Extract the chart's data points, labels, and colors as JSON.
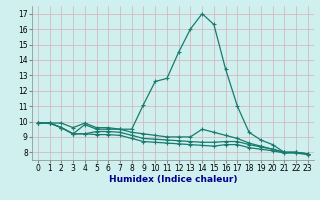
{
  "bg_color": "#cff0ee",
  "grid_color": "#d4b0b8",
  "line_color": "#1a7a6e",
  "xlabel": "Humidex (Indice chaleur)",
  "xlim": [
    -0.5,
    23.5
  ],
  "ylim": [
    7.5,
    17.5
  ],
  "yticks": [
    8,
    9,
    10,
    11,
    12,
    13,
    14,
    15,
    16,
    17
  ],
  "xticks": [
    0,
    1,
    2,
    3,
    4,
    5,
    6,
    7,
    8,
    9,
    10,
    11,
    12,
    13,
    14,
    15,
    16,
    17,
    18,
    19,
    20,
    21,
    22,
    23
  ],
  "series": [
    [
      9.9,
      9.9,
      9.9,
      9.6,
      9.9,
      9.6,
      9.6,
      9.5,
      9.5,
      11.1,
      12.6,
      12.8,
      14.5,
      16.0,
      17.0,
      16.3,
      13.4,
      11.0,
      9.3,
      8.8,
      8.5,
      8.0,
      8.0,
      7.9
    ],
    [
      9.9,
      9.9,
      9.6,
      9.2,
      9.8,
      9.5,
      9.5,
      9.5,
      9.3,
      9.2,
      9.1,
      9.0,
      9.0,
      9.0,
      9.5,
      9.3,
      9.1,
      8.9,
      8.6,
      8.4,
      8.2,
      8.0,
      8.0,
      7.9
    ],
    [
      9.9,
      9.9,
      9.6,
      9.2,
      9.2,
      9.35,
      9.35,
      9.3,
      9.1,
      8.9,
      8.85,
      8.8,
      8.75,
      8.7,
      8.65,
      8.65,
      8.7,
      8.7,
      8.5,
      8.35,
      8.2,
      8.0,
      8.0,
      7.9
    ],
    [
      9.9,
      9.9,
      9.6,
      9.2,
      9.2,
      9.15,
      9.15,
      9.1,
      8.9,
      8.7,
      8.65,
      8.6,
      8.55,
      8.5,
      8.45,
      8.4,
      8.5,
      8.5,
      8.3,
      8.2,
      8.1,
      7.95,
      7.95,
      7.85
    ]
  ],
  "xlabel_color": "#00008b",
  "xlabel_fontsize": 6.5,
  "tick_fontsize": 5.5,
  "line_width": 0.9,
  "marker_size": 3
}
